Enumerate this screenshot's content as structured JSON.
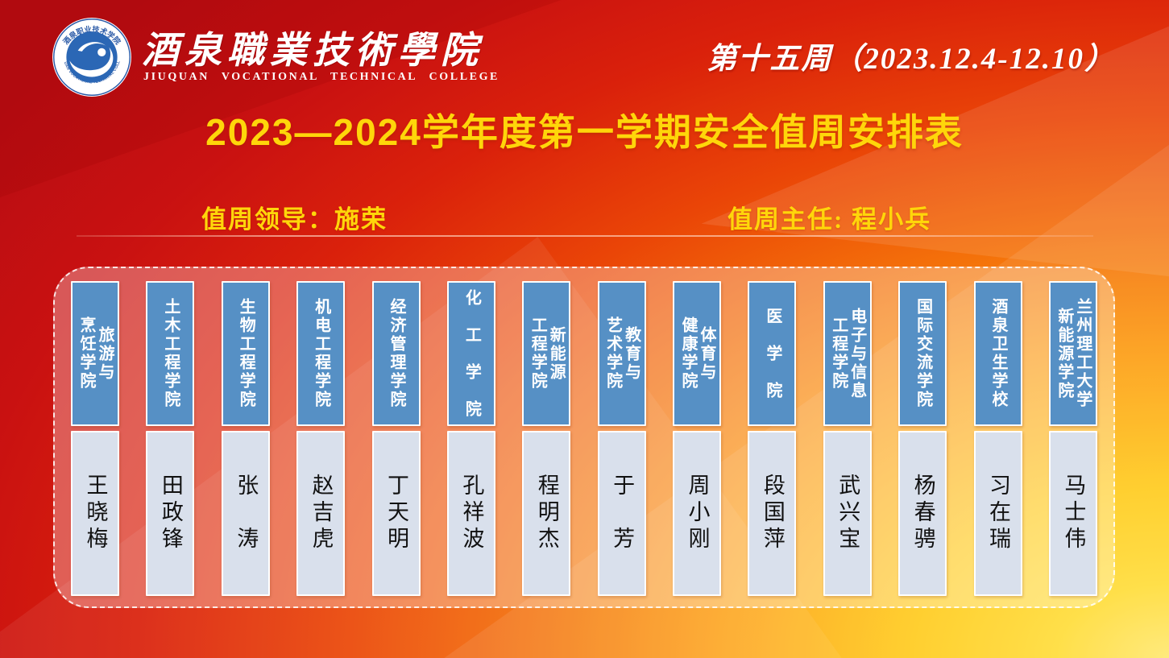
{
  "header": {
    "logo": {
      "emblem_top_text": "酒泉职业技术学院",
      "emblem_bottom_text": "JIUQUAN VOCATIONAL TECHNICAL COLLEGE",
      "college_name_cn": "酒泉職業技術學院",
      "college_name_en": "JIUQUAN  VOCATIONAL  TECHNICAL  COLLEGE"
    },
    "week_label": "第十五周（2023.12.4-12.10）"
  },
  "title": "2023—2024学年度第一学期安全值周安排表",
  "duty": {
    "leader": "值周领导：施荣",
    "director": "值周主任: 程小兵"
  },
  "schedule": {
    "columns": [
      {
        "college_lines": [
          "旅游与",
          "烹饪学院"
        ],
        "name": "王晓梅"
      },
      {
        "college_lines": [
          "土木工程学院"
        ],
        "name": "田政锋"
      },
      {
        "college_lines": [
          "生物工程学院"
        ],
        "name": "张　涛"
      },
      {
        "college_lines": [
          "机电工程学院"
        ],
        "name": "赵吉虎"
      },
      {
        "college_lines": [
          "经济管理学院"
        ],
        "name": "丁天明"
      },
      {
        "college_lines": [
          "化　工　学　院"
        ],
        "name": "孔祥波"
      },
      {
        "college_lines": [
          "新能源",
          "工程学院"
        ],
        "name": "程明杰"
      },
      {
        "college_lines": [
          "教育与",
          "艺术学院"
        ],
        "name": "于　芳"
      },
      {
        "college_lines": [
          "体育与",
          "健康学院"
        ],
        "name": "周小刚"
      },
      {
        "college_lines": [
          "医　学　院"
        ],
        "name": "段国萍"
      },
      {
        "college_lines": [
          "电子与信息",
          "工程学院"
        ],
        "name": "武兴宝"
      },
      {
        "college_lines": [
          "国际交流学院"
        ],
        "name": "杨春骋"
      },
      {
        "college_lines": [
          "酒泉卫生学校"
        ],
        "name": "习在瑞"
      },
      {
        "college_lines": [
          "兰州理工大学",
          "新能源学院"
        ],
        "name": "马士伟"
      }
    ]
  },
  "colors": {
    "bg_red": "#c91111",
    "bg_orange": "#f4700a",
    "bg_yellow": "#ffd21e",
    "accent_yellow": "#ffd60a",
    "column_header_blue": "#5690c5",
    "column_body_blue": "#d9e0ec",
    "emblem_blue": "#2b67b5"
  }
}
